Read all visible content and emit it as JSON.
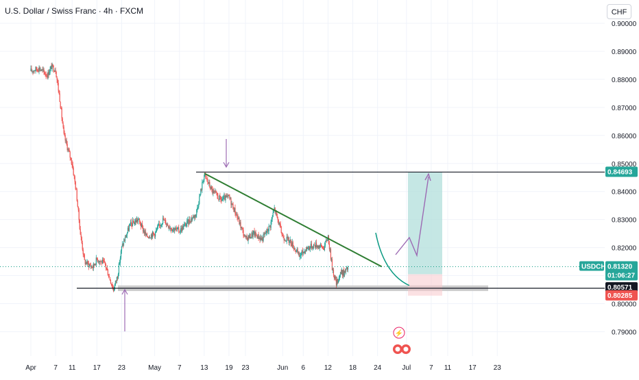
{
  "header": {
    "title": "U.S. Dollar / Swiss Franc · 4h · FXCM",
    "currency_button": "CHF"
  },
  "price_label": {
    "symbol": "USDCHF",
    "price": "0.81320",
    "countdown": "01:06:27"
  },
  "levels": {
    "resistance": "0.84693",
    "stop_upper": "0.80571",
    "stop_lower": "0.80285"
  },
  "colors": {
    "up": "#26a69a",
    "down": "#ef5350",
    "trendline": "#2e7d32",
    "arrow": "#9c6ab3",
    "target_zone": "#b2dfdb",
    "stop_zone": "#f8c9cc",
    "support_zone": "#c8c8c8",
    "price_line": "#089981"
  },
  "chart_data": {
    "type": "candlestick",
    "title": "U.S. Dollar / Swiss Franc · 4h · FXCM",
    "y_ticks": [
      "0.79000",
      "0.80000",
      "0.81000",
      "0.82000",
      "0.83000",
      "0.84000",
      "0.85000",
      "0.86000",
      "0.87000",
      "0.88000",
      "0.89000",
      "0.90000"
    ],
    "x_ticks": [
      "Apr",
      "7",
      "11",
      "17",
      "23",
      "May",
      "7",
      "13",
      "19",
      "23",
      "Jun",
      "6",
      "12",
      "18",
      "24",
      "Jul",
      "7",
      "11",
      "17",
      "23"
    ],
    "ylim": [
      0.789,
      0.901
    ],
    "series_path": [
      [
        "Apr 1",
        0.883
      ],
      [
        "Apr 3",
        0.884
      ],
      [
        "Apr 5",
        0.8815
      ],
      [
        "Apr 6",
        0.8845
      ],
      [
        "Apr 7",
        0.8835
      ],
      [
        "Apr 8",
        0.873
      ],
      [
        "Apr 9",
        0.86
      ],
      [
        "Apr 10",
        0.855
      ],
      [
        "Apr 11",
        0.85
      ],
      [
        "Apr 12",
        0.84
      ],
      [
        "Apr 13",
        0.825
      ],
      [
        "Apr 14",
        0.815
      ],
      [
        "Apr 16",
        0.813
      ],
      [
        "Apr 17",
        0.816
      ],
      [
        "Apr 19",
        0.814
      ],
      [
        "Apr 21",
        0.805
      ],
      [
        "Apr 22",
        0.81
      ],
      [
        "Apr 23",
        0.82
      ],
      [
        "Apr 25",
        0.828
      ],
      [
        "Apr 27",
        0.83
      ],
      [
        "Apr 29",
        0.824
      ],
      [
        "May 1",
        0.825
      ],
      [
        "May 3",
        0.83
      ],
      [
        "May 5",
        0.827
      ],
      [
        "May 7",
        0.826
      ],
      [
        "May 9",
        0.829
      ],
      [
        "May 11",
        0.832
      ],
      [
        "May 13",
        0.846
      ],
      [
        "May 15",
        0.84
      ],
      [
        "May 17",
        0.837
      ],
      [
        "May 19",
        0.838
      ],
      [
        "May 21",
        0.831
      ],
      [
        "May 23",
        0.823
      ],
      [
        "May 25",
        0.825
      ],
      [
        "May 27",
        0.823
      ],
      [
        "May 29",
        0.828
      ],
      [
        "May 30",
        0.834
      ],
      [
        "Jun 1",
        0.824
      ],
      [
        "Jun 3",
        0.822
      ],
      [
        "Jun 5",
        0.817
      ],
      [
        "Jun 7",
        0.82
      ],
      [
        "Jun 9",
        0.821
      ],
      [
        "Jun 11",
        0.82
      ],
      [
        "Jun 12",
        0.824
      ],
      [
        "Jun 13",
        0.813
      ],
      [
        "Jun 14",
        0.807
      ],
      [
        "Jun 15",
        0.811
      ],
      [
        "Jun 16",
        0.811
      ],
      [
        "Jun 17",
        0.8132
      ]
    ],
    "annotations": {
      "resistance_level": 0.84693,
      "support_zone": [
        0.8045,
        0.8065
      ],
      "trendline": [
        [
          "May 13",
          0.8465
        ],
        [
          "Jun 25",
          0.8132
        ]
      ],
      "target_zone": [
        0.8105,
        0.84693
      ],
      "stop_zone": [
        0.80285,
        0.80571
      ],
      "current_price": 0.8132
    }
  }
}
